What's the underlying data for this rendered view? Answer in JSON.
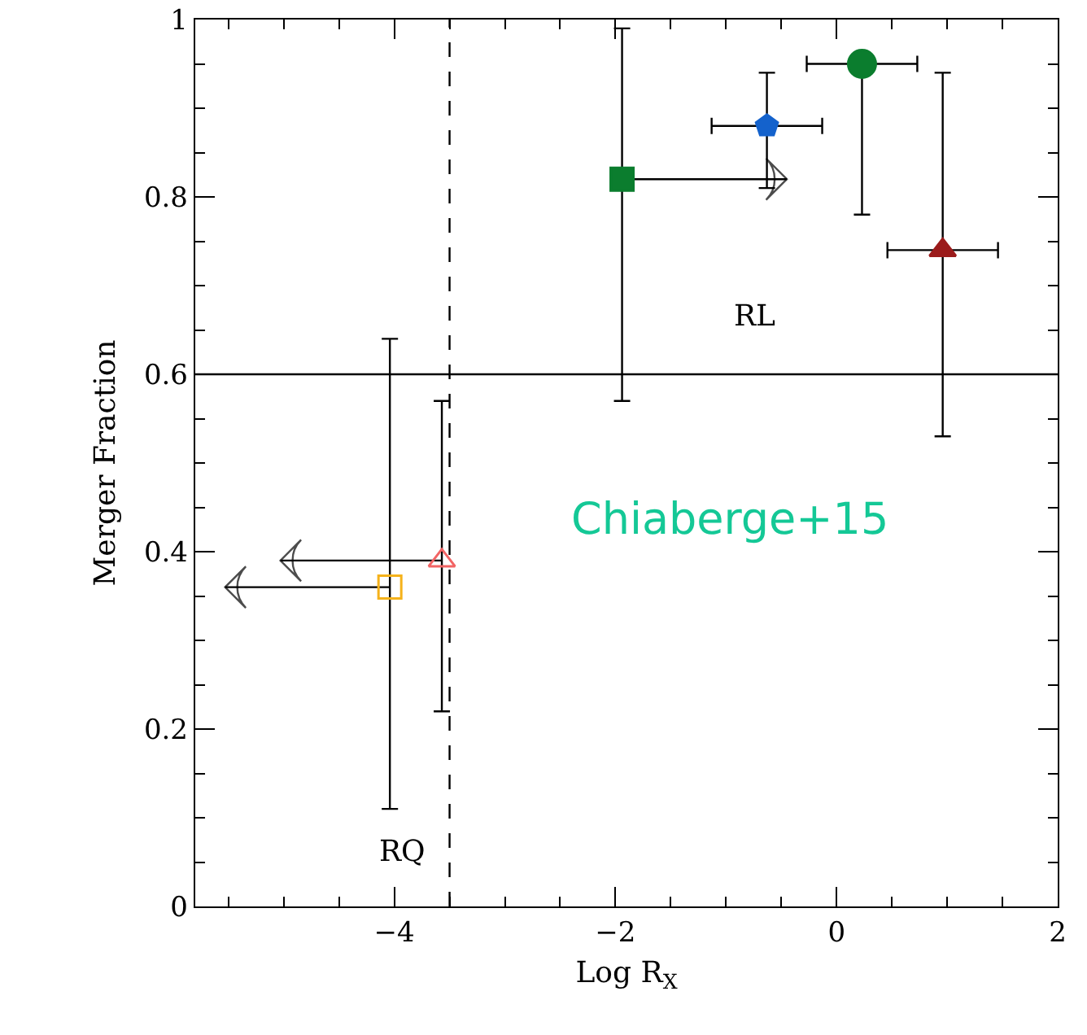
{
  "chart_data": {
    "type": "scatter",
    "xlabel": "Log R$_{X}$",
    "ylabel": "Merger Fraction",
    "xlim": [
      -5.8,
      2
    ],
    "xticks": [
      -4,
      -2,
      0,
      2
    ],
    "ylim": [
      0,
      1
    ],
    "yticks": [
      0,
      0.2,
      0.4,
      0.6,
      0.8,
      1
    ],
    "grid": false,
    "series": [
      {
        "marker": "square",
        "color": "#0b7d2e",
        "x": [
          -1.94
        ],
        "values": [
          0.82
        ],
        "errors": [
          [
            0.57,
            0.99
          ]
        ]
      },
      {
        "color": "#1462cc",
        "x": [
          -0.63
        ],
        "values": [
          0.88
        ],
        "errors": [
          [
            0.81,
            0.94
          ]
        ],
        "xerrors": [
          [
            -1.13,
            -0.13
          ]
        ]
      },
      {
        "marker": "circle",
        "color": "#0b7d2e",
        "x": [
          0.23
        ],
        "values": [
          0.95
        ],
        "errors": [
          [
            0.78,
            0.95
          ]
        ],
        "xerrors": [
          [
            -0.27,
            0.73
          ]
        ]
      },
      {
        "marker": "triangle",
        "color": "#9b1b1b",
        "x": [
          0.96
        ],
        "values": [
          0.74
        ],
        "errors": [
          [
            0.53,
            0.94
          ]
        ],
        "xerrors": [
          [
            0.46,
            1.46
          ]
        ]
      },
      {
        "marker": "triangle-open",
        "color": "#f26464",
        "x": [
          -3.57
        ],
        "values": [
          0.39
        ],
        "errors": [
          [
            0.22,
            0.57
          ]
        ]
      },
      {
        "marker": "square-open",
        "color": "#f5b21b",
        "x": [
          -4.04
        ],
        "values": [
          0.36
        ],
        "errors": [
          [
            0.11,
            0.64
          ]
        ]
      },
      {
        "type": "line",
        "color": "#000000",
        "x": [
          -1.94,
          -0.45
        ],
        "values": [
          0.82,
          0.82
        ]
      },
      {
        "type": "line",
        "color": "#000000",
        "x": [
          -3.57,
          -5.03
        ],
        "values": [
          0.39,
          0.39
        ]
      },
      {
        "type": "line",
        "color": "#000000",
        "x": [
          -4.04,
          -5.53
        ],
        "values": [
          0.36,
          0.36
        ]
      }
    ],
    "ref_lines": [
      {
        "axis": "y",
        "value": 0.6,
        "line_style": "solid"
      },
      {
        "axis": "x",
        "value": -3.5,
        "line_style": "dashed"
      }
    ],
    "annotations": [
      "RL",
      "RQ",
      "Chiaberge+15"
    ]
  }
}
